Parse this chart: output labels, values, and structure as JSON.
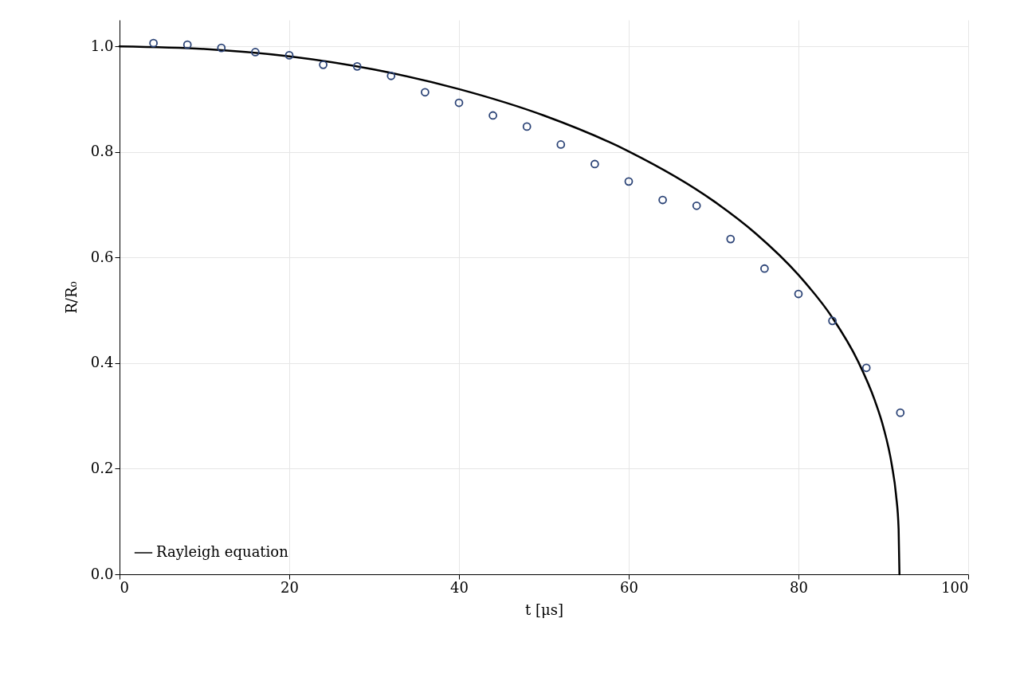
{
  "chart_data": {
    "type": "line",
    "xlabel": "t [μs]",
    "ylabel": "R/R₀",
    "xlim": [
      0,
      100
    ],
    "xticks": [
      0,
      20,
      40,
      60,
      80,
      100
    ],
    "ylim": [
      0,
      1.05
    ],
    "yticks": [
      {
        "value": 0,
        "label": "0.0"
      },
      {
        "value": 0.2,
        "label": "0.2"
      },
      {
        "value": 0.4,
        "label": "0.4"
      },
      {
        "value": 0.6,
        "label": "0.6"
      },
      {
        "value": 0.8,
        "label": "0.8"
      },
      {
        "value": 1,
        "label": "1.0"
      }
    ],
    "grid": true,
    "legend": "bottom left",
    "series": [
      {
        "name": "Rayleigh equation",
        "color": "#000000",
        "marker": "none",
        "x": [
          0,
          10,
          20,
          30,
          40,
          50,
          60,
          70,
          75,
          80,
          84,
          87,
          89,
          90,
          91,
          91.5,
          91.8,
          91.9
        ],
        "values": [
          1,
          0.995,
          0.981,
          0.956,
          0.919,
          0.869,
          0.801,
          0.707,
          0.645,
          0.567,
          0.486,
          0.404,
          0.329,
          0.279,
          0.207,
          0.15,
          0.086,
          0
        ]
      },
      {
        "type": "scatter",
        "marker": "circle",
        "color": "#2c4477",
        "x": [
          4,
          8,
          12,
          16,
          20,
          24,
          28,
          32,
          36,
          40,
          44,
          48,
          52,
          56,
          60,
          64,
          68,
          72,
          76,
          80,
          84,
          88,
          92
        ],
        "values": [
          1.006,
          1.003,
          0.997,
          0.989,
          0.983,
          0.965,
          0.962,
          0.944,
          0.913,
          0.893,
          0.869,
          0.848,
          0.814,
          0.777,
          0.744,
          0.709,
          0.698,
          0.635,
          0.579,
          0.531,
          0.48,
          0.391,
          0.306
        ]
      }
    ]
  }
}
